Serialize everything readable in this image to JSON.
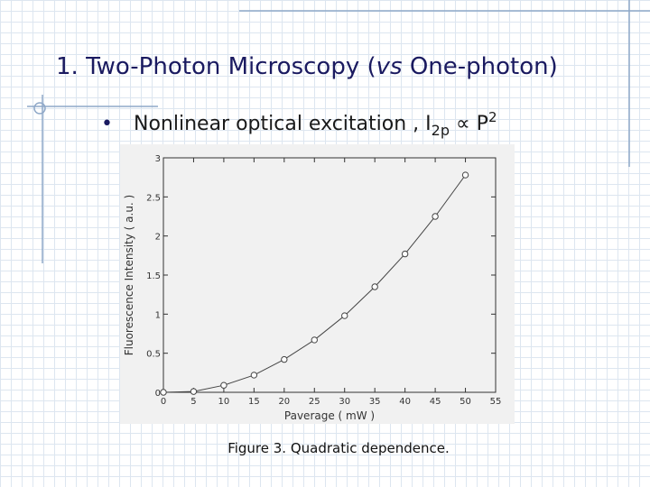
{
  "slide_title": {
    "number": "1. Two-Photon Microscopy (",
    "italic": "vs",
    "rest": " One-photon)"
  },
  "bullet": {
    "text": "Nonlinear optical excitation , I",
    "subscript": "2p",
    "relation": " ∝ P",
    "superscript": "2"
  },
  "caption": "Figure 3. Quadratic dependence.",
  "chart_data": {
    "type": "line",
    "x_label": "Paverage ( mW )",
    "y_label": "Fluorescence Intensity ( a.u. )",
    "x": [
      0,
      5,
      10,
      15,
      20,
      25,
      30,
      35,
      40,
      45,
      50
    ],
    "values": [
      0,
      0.01,
      0.09,
      0.22,
      0.42,
      0.67,
      0.98,
      1.35,
      1.77,
      2.25,
      2.78
    ],
    "color": "#444444",
    "markers": true,
    "xlim": [
      0,
      55
    ],
    "xticks": [
      0,
      5,
      10,
      15,
      20,
      25,
      30,
      35,
      40,
      45,
      50,
      55
    ],
    "ylim": [
      0,
      3
    ],
    "yticks": [
      0,
      0.5,
      1,
      1.5,
      2,
      2.5,
      3
    ],
    "grid": false
  }
}
